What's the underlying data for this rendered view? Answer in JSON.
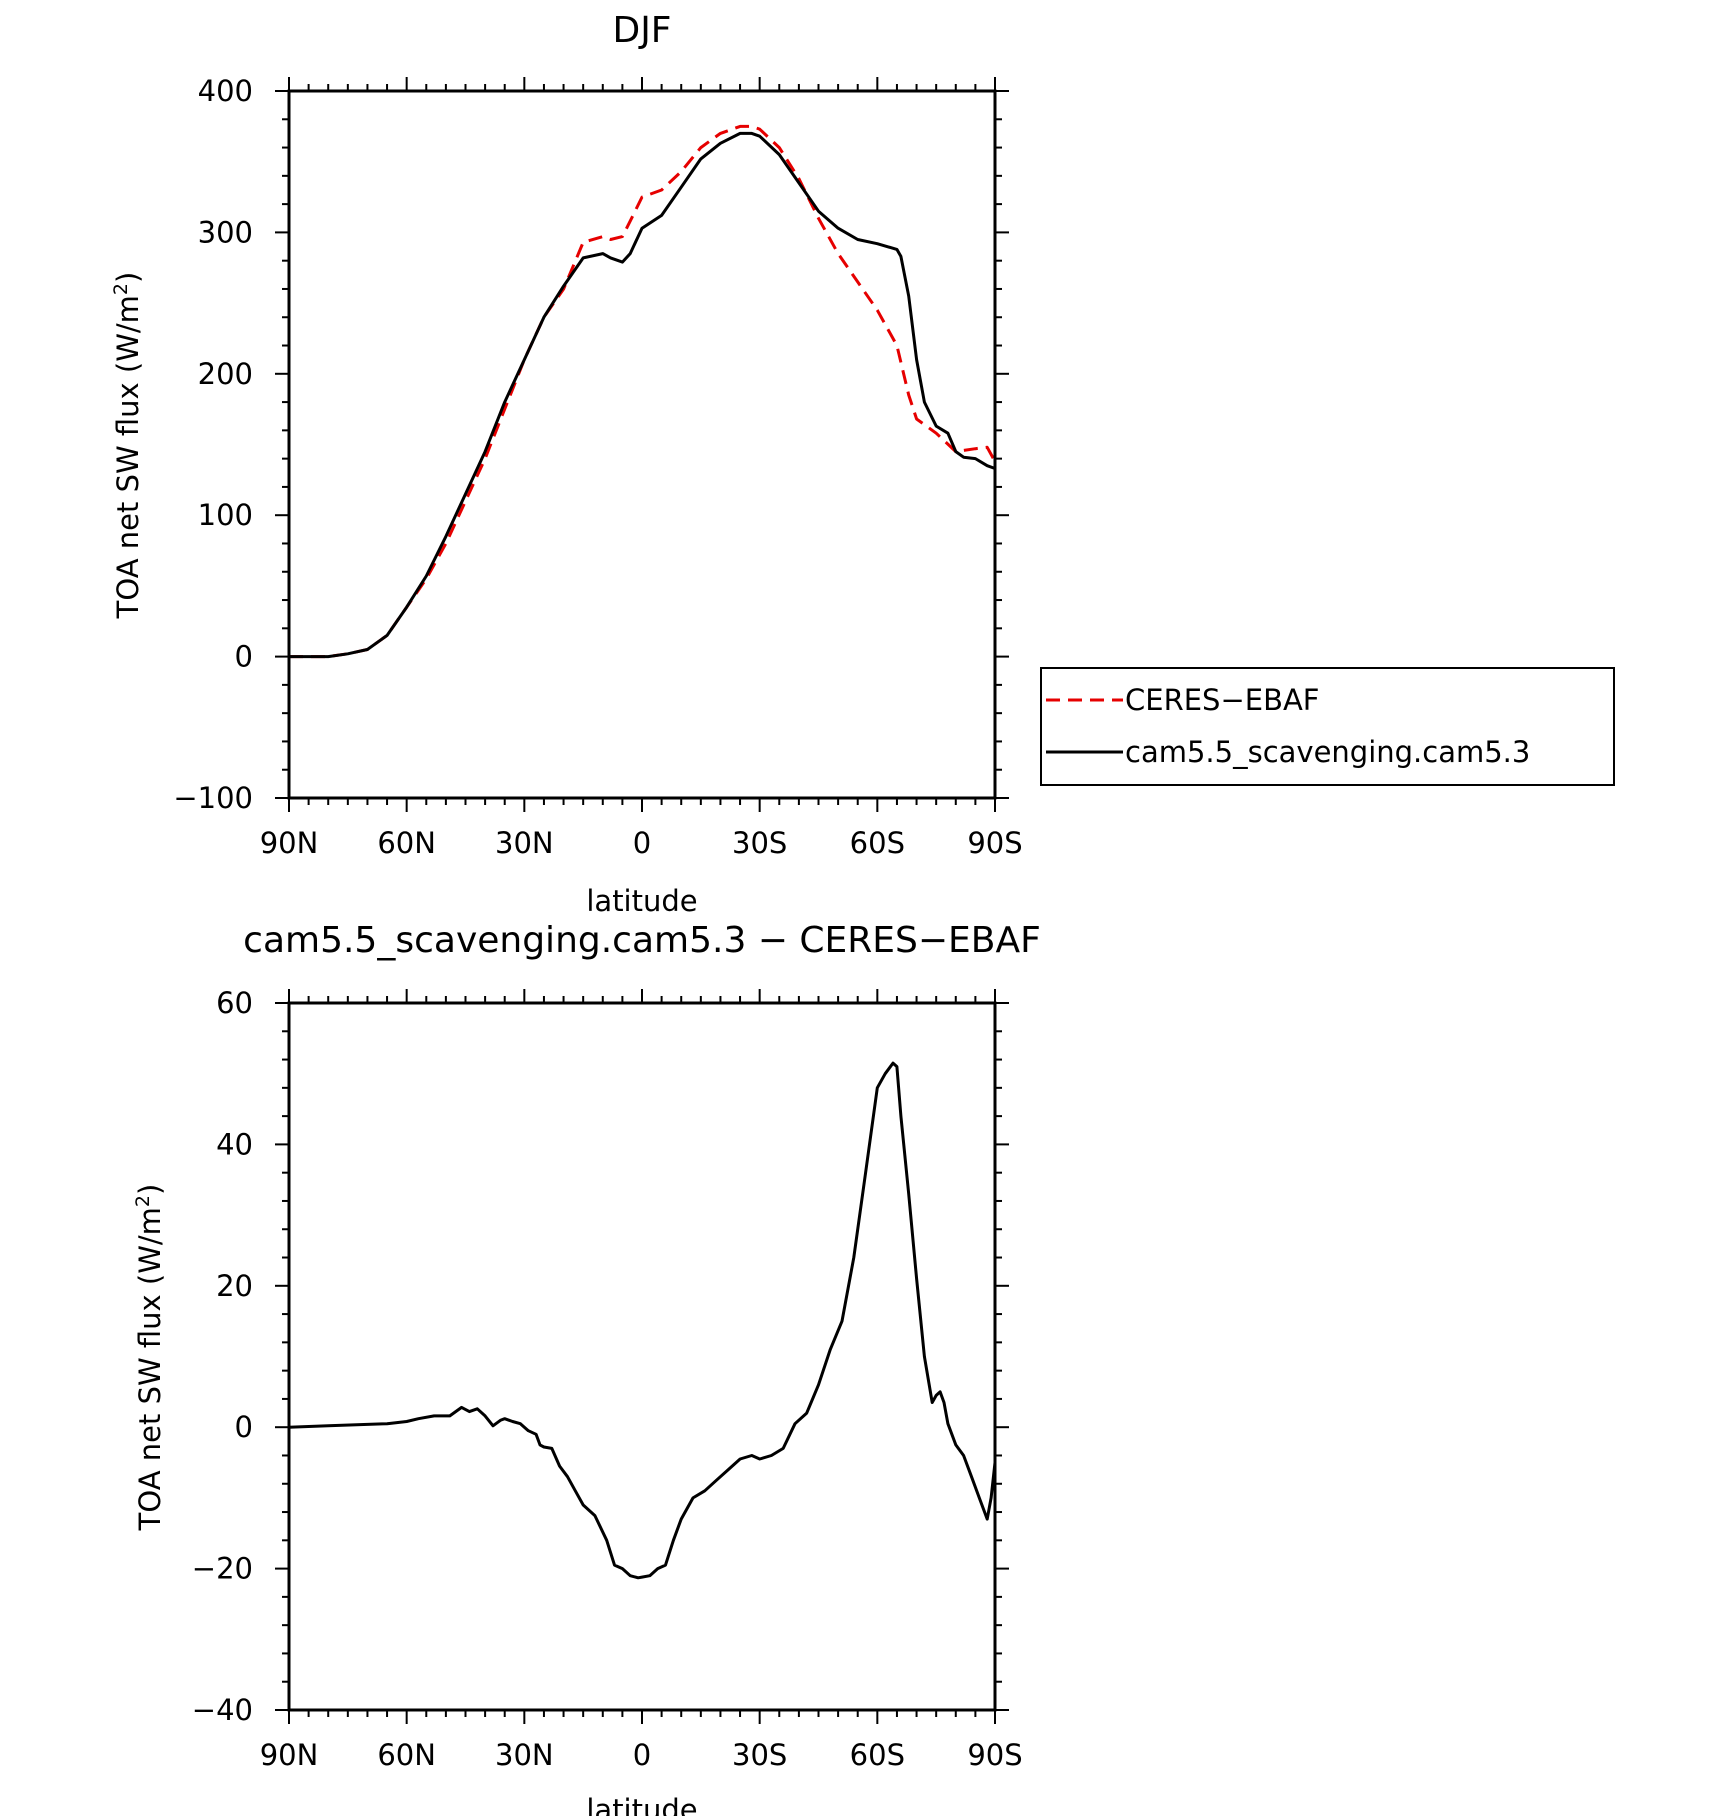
{
  "chart_data": [
    {
      "type": "line",
      "title": "DJF",
      "xlabel": "latitude",
      "ylabel": "TOA net SW flux (W/m",
      "ylabel_sup": "2",
      "ylabel_close": ")",
      "xlim": [
        -90,
        90
      ],
      "ylim": [
        -100,
        400
      ],
      "xticks": [
        -90,
        -60,
        -30,
        0,
        30,
        60,
        90
      ],
      "xticklabels": [
        "90N",
        "60N",
        "30N",
        "0",
        "30S",
        "60S",
        "90S"
      ],
      "yticks": [
        -100,
        0,
        100,
        200,
        300,
        400
      ],
      "yticklabels": [
        "−100",
        "0",
        "100",
        "200",
        "300",
        "400"
      ],
      "legend": "right",
      "series": [
        {
          "name": "CERES−EBAF",
          "color": "#e60000",
          "style": "dashed",
          "x": [
            -90,
            -80,
            -75,
            -70,
            -65,
            -60,
            -55,
            -50,
            -45,
            -40,
            -35,
            -30,
            -25,
            -20,
            -15,
            -10,
            -8,
            -5,
            -3,
            0,
            5,
            10,
            15,
            20,
            25,
            28,
            30,
            35,
            40,
            45,
            50,
            55,
            60,
            65,
            68,
            70,
            75,
            80,
            85,
            88,
            90
          ],
          "values": [
            0,
            0,
            2,
            5,
            15,
            35,
            55,
            80,
            110,
            140,
            175,
            210,
            240,
            260,
            293,
            297,
            295,
            297,
            308,
            325,
            330,
            343,
            360,
            370,
            375,
            375,
            373,
            360,
            338,
            310,
            285,
            265,
            245,
            220,
            185,
            168,
            158,
            145,
            147,
            148,
            138
          ]
        },
        {
          "name": "cam5.5_scavenging.cam5.3",
          "color": "#000000",
          "style": "solid",
          "x": [
            -90,
            -80,
            -75,
            -70,
            -65,
            -60,
            -55,
            -50,
            -45,
            -40,
            -35,
            -30,
            -25,
            -20,
            -15,
            -10,
            -8,
            -5,
            -3,
            0,
            5,
            10,
            15,
            20,
            25,
            28,
            30,
            35,
            40,
            45,
            50,
            55,
            60,
            65,
            66,
            68,
            70,
            72,
            75,
            78,
            80,
            82,
            85,
            88,
            90
          ],
          "values": [
            0,
            0,
            2,
            5,
            15,
            35,
            57,
            85,
            115,
            145,
            180,
            210,
            240,
            262,
            282,
            285,
            282,
            279,
            285,
            303,
            312,
            332,
            352,
            363,
            370,
            370,
            368,
            355,
            335,
            315,
            303,
            295,
            292,
            288,
            283,
            255,
            210,
            180,
            163,
            158,
            145,
            141,
            140,
            135,
            133
          ]
        }
      ]
    },
    {
      "type": "line",
      "title": "cam5.5_scavenging.cam5.3 − CERES−EBAF",
      "xlabel": "latitude",
      "ylabel": "TOA net SW flux (W/m",
      "ylabel_sup": "2",
      "ylabel_close": ")",
      "xlim": [
        -90,
        90
      ],
      "ylim": [
        -40,
        60
      ],
      "xticks": [
        -90,
        -60,
        -30,
        0,
        30,
        60,
        90
      ],
      "xticklabels": [
        "90N",
        "60N",
        "30N",
        "0",
        "30S",
        "60S",
        "90S"
      ],
      "yticks": [
        -40,
        -20,
        0,
        20,
        40,
        60
      ],
      "yticklabels": [
        "−40",
        "−20",
        "0",
        "20",
        "40",
        "60"
      ],
      "series": [
        {
          "color": "#000000",
          "style": "solid",
          "x": [
            -90,
            -80,
            -70,
            -65,
            -60,
            -57,
            -53,
            -49,
            -46,
            -44,
            -42,
            -40,
            -38,
            -36,
            -35,
            -33,
            -31,
            -29,
            -27,
            -26,
            -25,
            -23,
            -21,
            -19,
            -17,
            -15,
            -12,
            -9,
            -7,
            -5,
            -3,
            -1,
            0,
            2,
            4,
            6,
            8,
            10,
            13,
            16,
            19,
            22,
            25,
            28,
            30,
            33,
            36,
            39,
            42,
            45,
            48,
            51,
            54,
            57,
            60,
            62,
            64,
            65,
            66,
            68,
            70,
            72,
            74,
            75,
            76,
            77,
            78,
            80,
            82,
            84,
            86,
            88,
            89,
            90
          ],
          "values": [
            0,
            0.2,
            0.4,
            0.5,
            0.8,
            1.2,
            1.6,
            1.6,
            2.8,
            2.2,
            2.6,
            1.6,
            0.2,
            1.0,
            1.2,
            0.8,
            0.5,
            -0.5,
            -1.0,
            -2.5,
            -2.8,
            -3.0,
            -5.5,
            -7.0,
            -9.0,
            -11.0,
            -12.5,
            -16.0,
            -19.5,
            -20.0,
            -21.0,
            -21.3,
            -21.2,
            -21.0,
            -20.0,
            -19.5,
            -16.0,
            -13.0,
            -10.0,
            -9.0,
            -7.5,
            -6.0,
            -4.5,
            -4.0,
            -4.5,
            -4.0,
            -3.0,
            0.5,
            2.0,
            6.0,
            11.0,
            15.0,
            24.0,
            36.0,
            48.0,
            50.0,
            51.5,
            51.0,
            44.0,
            33.0,
            21.0,
            10.0,
            3.5,
            4.5,
            5.0,
            3.5,
            0.5,
            -2.5,
            -4.0,
            -7.0,
            -10.0,
            -13.0,
            -10.0,
            -5.0
          ]
        }
      ]
    }
  ]
}
